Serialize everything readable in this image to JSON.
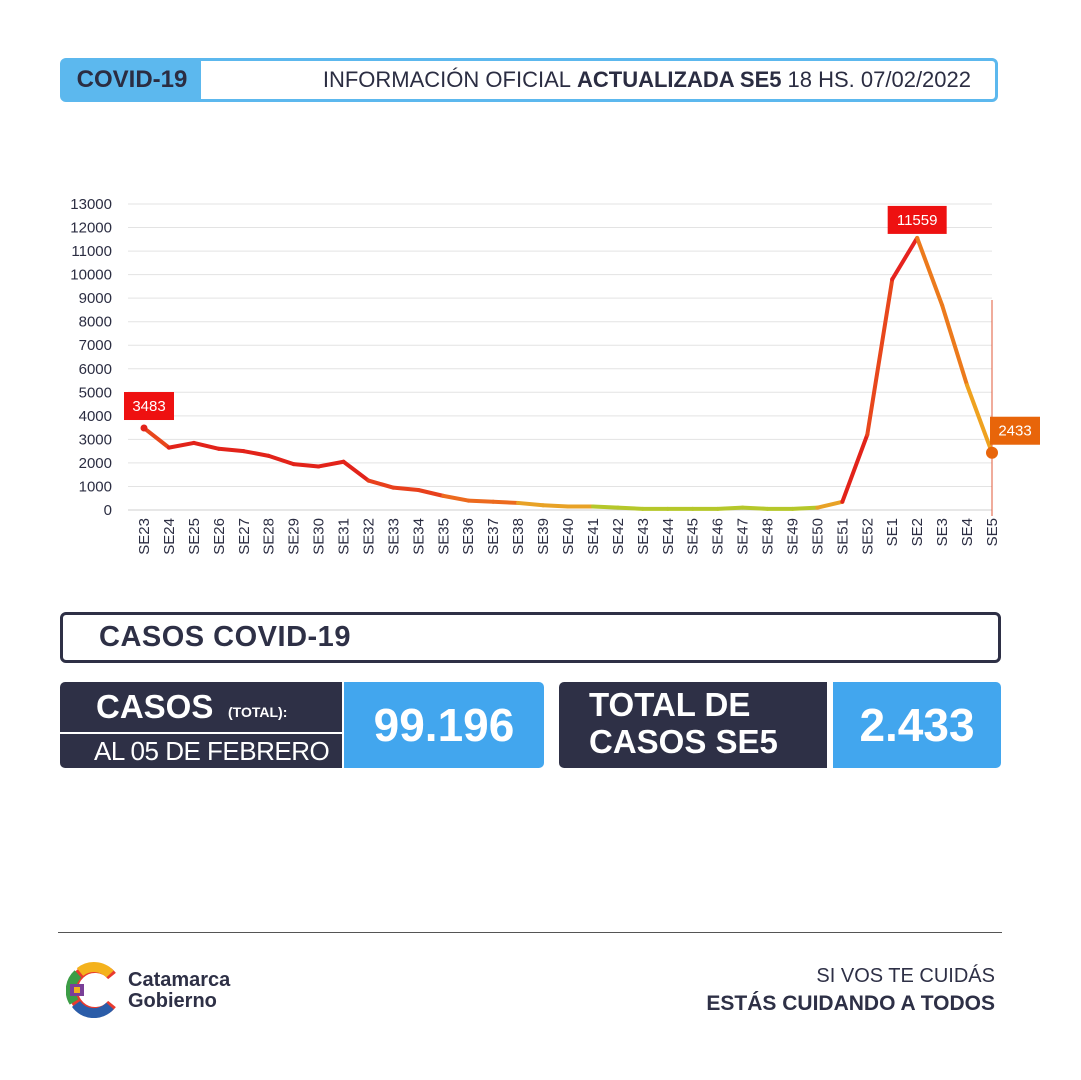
{
  "header": {
    "badge": "COVID-19",
    "info_pre": "INFORMACIÓN OFICIAL",
    "info_bold": "ACTUALIZADA SE5",
    "info_post": "18 HS. 07/02/2022",
    "accent_color": "#5cb8ee"
  },
  "chart_data": {
    "type": "line",
    "title": "",
    "xlabel": "",
    "ylabel": "",
    "ylim": [
      0,
      13000
    ],
    "yticks": [
      0,
      1000,
      2000,
      3000,
      4000,
      5000,
      6000,
      7000,
      8000,
      9000,
      10000,
      11000,
      12000,
      13000
    ],
    "grid": true,
    "categories": [
      "SE23",
      "SE24",
      "SE25",
      "SE26",
      "SE27",
      "SE28",
      "SE29",
      "SE30",
      "SE31",
      "SE32",
      "SE33",
      "SE34",
      "SE35",
      "SE36",
      "SE37",
      "SE38",
      "SE39",
      "SE40",
      "SE41",
      "SE42",
      "SE43",
      "SE44",
      "SE45",
      "SE46",
      "SE47",
      "SE48",
      "SE49",
      "SE50",
      "SE51",
      "SE52",
      "SE1",
      "SE2",
      "SE3",
      "SE4",
      "SE5"
    ],
    "series": [
      {
        "values": [
          3483,
          2650,
          2850,
          2600,
          2500,
          2300,
          1950,
          1850,
          2050,
          1250,
          950,
          850,
          600,
          400,
          350,
          300,
          200,
          150,
          150,
          100,
          50,
          50,
          50,
          50,
          100,
          50,
          50,
          100,
          350,
          3200,
          9800,
          11559,
          8700,
          5300,
          2433
        ]
      }
    ],
    "annotations": [
      {
        "label": "3483",
        "index": 0,
        "color": "#ee1111"
      },
      {
        "label": "11559",
        "index": 31,
        "color": "#ee1111"
      },
      {
        "label": "2433",
        "index": 34,
        "color": "#e8650a"
      }
    ]
  },
  "section": {
    "title": "CASOS COVID-19"
  },
  "stats": {
    "casos_label": "CASOS",
    "casos_sub": "(TOTAL):",
    "casos_date": "AL 05 DE FEBRERO",
    "casos_value": "99.196",
    "total_label_1": "TOTAL DE",
    "total_label_2": "CASOS SE5",
    "total_value": "2.433"
  },
  "footer": {
    "logo_line1": "Catamarca",
    "logo_line2": "Gobierno",
    "slogan_1": "SI VOS TE CUIDÁS",
    "slogan_2": "ESTÁS CUIDANDO A TODOS"
  }
}
